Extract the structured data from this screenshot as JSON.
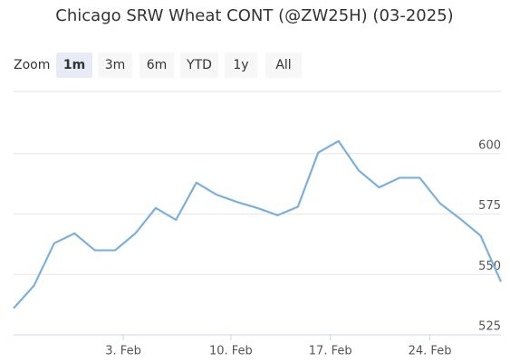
{
  "chart_data": {
    "type": "line",
    "title": "Chicago SRW Wheat CONT (@ZW25H) (03-2025)",
    "zoom_label": "Zoom",
    "zoom_buttons": [
      "1m",
      "3m",
      "6m",
      "YTD",
      "1y",
      "All"
    ],
    "selected_button": 0,
    "x": [
      0,
      1,
      2,
      3,
      4,
      5,
      6,
      7,
      8,
      9,
      10,
      11,
      12,
      13,
      14,
      15,
      16,
      17,
      18,
      19,
      20,
      21,
      22,
      23,
      24
    ],
    "series": [
      {
        "color": "#7cb0dc",
        "values": [
          536,
          545.3,
          562.9,
          567,
          560,
          560,
          567,
          577.5,
          572.6,
          588,
          583,
          580,
          577.5,
          574.5,
          578,
          600.4,
          605.2,
          593,
          586,
          590,
          590,
          579.4,
          573,
          566,
          547
        ]
      }
    ],
    "xlim": [
      0,
      24
    ],
    "xticks": [
      {
        "value": 5.4,
        "label": "3. Feb"
      },
      {
        "value": 10.7,
        "label": "10. Feb"
      },
      {
        "value": 15.6,
        "label": "17. Feb"
      },
      {
        "value": 20.5,
        "label": "24. Feb"
      }
    ],
    "ylim": [
      525,
      625
    ],
    "yticks": [
      525,
      550,
      575,
      600
    ],
    "grid": true
  }
}
